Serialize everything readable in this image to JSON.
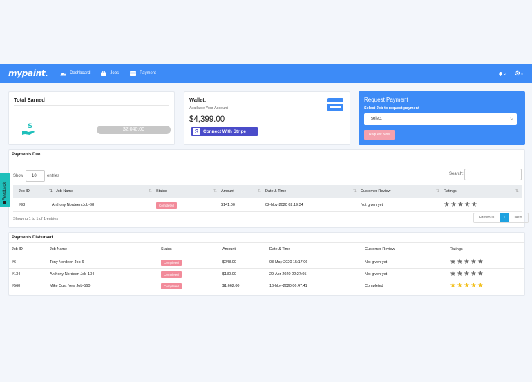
{
  "app": {
    "logo": "mypaint",
    "logo_dot": "."
  },
  "nav": [
    {
      "label": "Dashboard",
      "icon": "dashboard-icon"
    },
    {
      "label": "Jobs",
      "icon": "briefcase-icon"
    },
    {
      "label": "Payment",
      "icon": "credit-card-icon"
    }
  ],
  "header_right": {
    "notifications_icon": "bell-icon",
    "settings_icon": "gear-icon"
  },
  "total_earned": {
    "title": "Total Earned",
    "amount": "$2,040.00",
    "icon": "money-hand-icon"
  },
  "wallet": {
    "title": "Wallet:",
    "subtitle": "Available Your Account",
    "balance": "$4,399.00",
    "stripe_button": "Connect With Stripe",
    "stripe_glyph": "S",
    "icon": "credit-card-icon"
  },
  "request_payment": {
    "title": "Request Payment",
    "subtitle": "Select Job to request payment",
    "select_value": "select",
    "button": "Request Now"
  },
  "payments_due": {
    "title": "Payments Due",
    "show_label": "Show",
    "entries_value": "10",
    "entries_label": "entries",
    "search_label": "Search:",
    "columns": [
      "Job ID",
      "Job Name",
      "Status",
      "Amount",
      "Date & Time",
      "Customer Review",
      "Ratings"
    ],
    "rows": [
      {
        "job_id": "#98",
        "job_name": "Anthony Nordeen Job-98",
        "status": "Completed",
        "amount": "$141.00",
        "datetime": "02-Nov-2020 02:19:34",
        "review": "Not given yet",
        "rating": 5,
        "rating_color": "grey"
      }
    ],
    "showing": "Showing 1 to 1 of 1 entries",
    "pager": {
      "previous": "Previous",
      "page": "1",
      "next": "Next"
    }
  },
  "payments_disbursed": {
    "title": "Payments Disbursed",
    "columns": [
      "Job ID",
      "Job Name",
      "Status",
      "Amount",
      "Date & Time",
      "Customer Review",
      "Ratings"
    ],
    "rows": [
      {
        "job_id": "#6",
        "job_name": "Tony Nordeen Job-6",
        "status": "Completed",
        "amount": "$248.00",
        "datetime": "03-May-2020 15:17:06",
        "review": "Not given yet",
        "rating_color": "grey"
      },
      {
        "job_id": "#134",
        "job_name": "Anthony Nordeen Job-134",
        "status": "Completed",
        "amount": "$130.00",
        "datetime": "29-Apr-2020 22:27:05",
        "review": "Not given yet",
        "rating_color": "grey"
      },
      {
        "job_id": "#560",
        "job_name": "Mike Cust New Job-560",
        "status": "Completed",
        "amount": "$1,662.00",
        "datetime": "16-Nov-2020 06:47:41",
        "review": "Completed",
        "rating_color": "gold"
      }
    ]
  },
  "feedback": {
    "label": "Feedback"
  },
  "colors": {
    "primary": "#3d8bf7",
    "stripe": "#4a4cc9",
    "badge": "#f28b9a",
    "teal": "#1fc0bb",
    "star_gold": "#f2c01f"
  }
}
